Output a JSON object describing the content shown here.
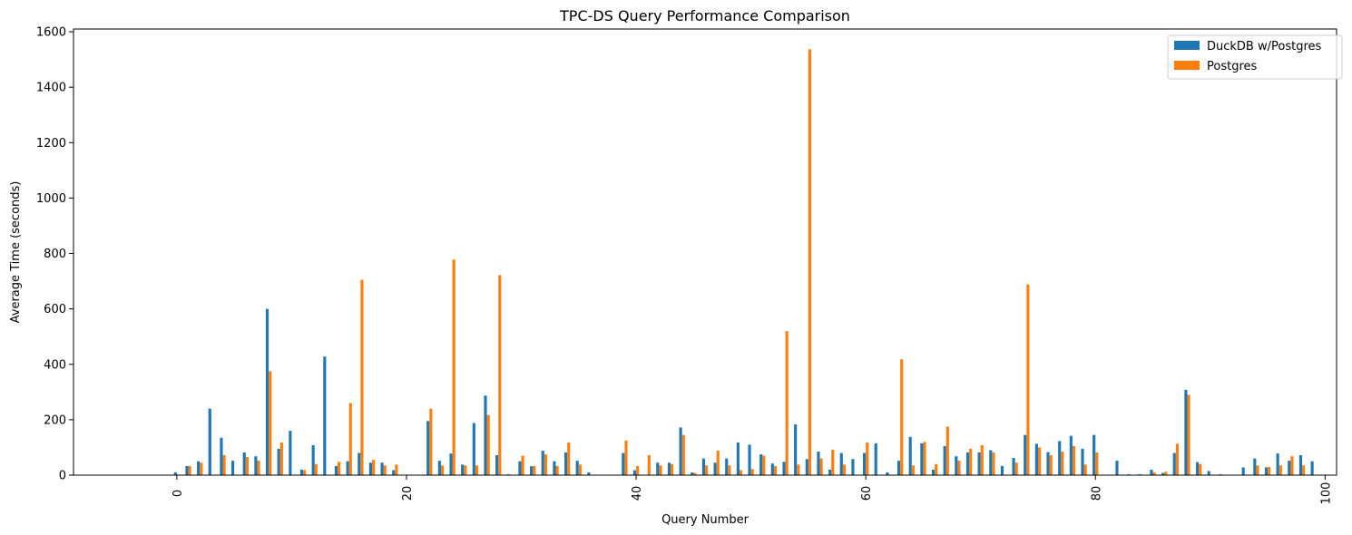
{
  "chart_data": {
    "type": "bar",
    "title": "TPC-DS Query Performance Comparison",
    "xlabel": "Query Number",
    "ylabel": "Average Time (seconds)",
    "xlim": [
      -9,
      101
    ],
    "ylim": [
      0,
      1610
    ],
    "xticks": [
      0,
      20,
      40,
      60,
      80,
      100
    ],
    "yticks": [
      0,
      200,
      400,
      600,
      800,
      1000,
      1200,
      1400,
      1600
    ],
    "legend": {
      "placement": "top-right"
    },
    "grid": false,
    "series": [
      {
        "name": "DuckDB w/Postgres",
        "color": "#1f77b4",
        "values": [
          10,
          33,
          50,
          240,
          135,
          52,
          82,
          68,
          600,
          95,
          160,
          20,
          108,
          428,
          33,
          50,
          80,
          45,
          45,
          18,
          0,
          0,
          195,
          52,
          78,
          38,
          188,
          287,
          72,
          3,
          50,
          32,
          88,
          50,
          82,
          52,
          10,
          0,
          0,
          80,
          18,
          0,
          45,
          45,
          172,
          10,
          60,
          45,
          60,
          118,
          110,
          75,
          42,
          48,
          183,
          58,
          85,
          20,
          80,
          58,
          80,
          115,
          10,
          52,
          138,
          115,
          20,
          105,
          68,
          82,
          82,
          90,
          33,
          62,
          145,
          113,
          83,
          123,
          142,
          95,
          145,
          0,
          52,
          3,
          3,
          20,
          8,
          80,
          308,
          47,
          15,
          3,
          0,
          28,
          60,
          28,
          78,
          52,
          72,
          50
        ]
      },
      {
        "name": "Postgres",
        "color": "#ff7f0e",
        "values": [
          0,
          33,
          45,
          0,
          72,
          0,
          65,
          52,
          375,
          118,
          0,
          18,
          40,
          0,
          48,
          260,
          705,
          55,
          35,
          38,
          0,
          0,
          240,
          35,
          778,
          35,
          35,
          217,
          722,
          0,
          70,
          33,
          75,
          33,
          118,
          38,
          0,
          0,
          0,
          125,
          33,
          72,
          35,
          40,
          145,
          8,
          35,
          88,
          35,
          18,
          22,
          70,
          33,
          520,
          38,
          1537,
          60,
          92,
          38,
          0,
          118,
          0,
          0,
          418,
          35,
          120,
          40,
          175,
          52,
          95,
          108,
          82,
          0,
          45,
          688,
          100,
          72,
          85,
          105,
          38,
          82,
          0,
          0,
          0,
          0,
          10,
          12,
          113,
          290,
          40,
          0,
          0,
          0,
          0,
          35,
          30,
          35,
          68,
          35,
          0
        ]
      }
    ]
  }
}
